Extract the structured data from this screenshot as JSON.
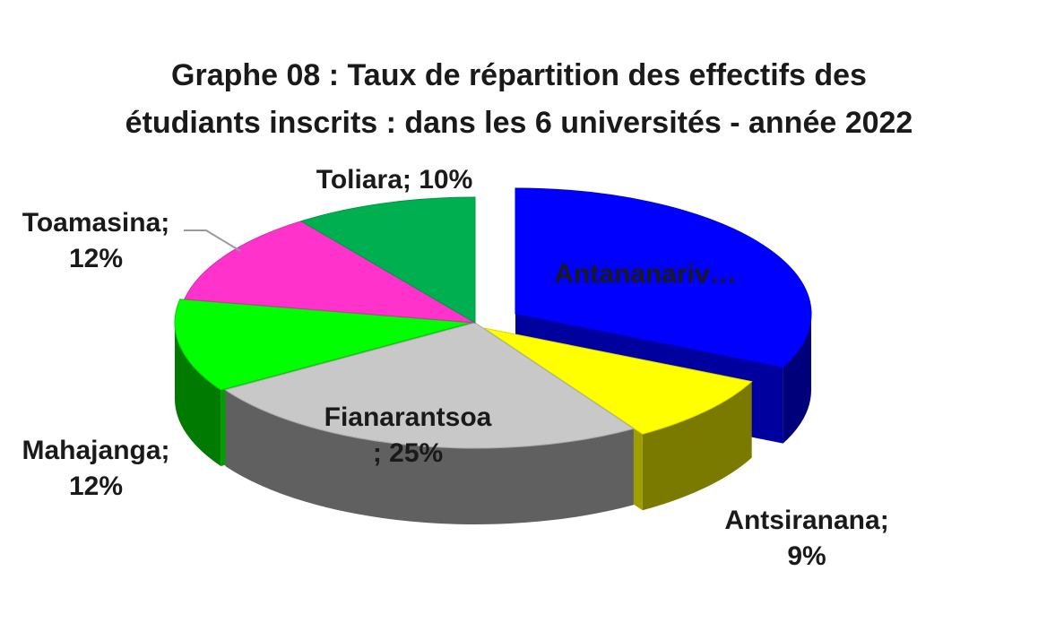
{
  "chart_data": {
    "type": "pie",
    "title_line1": "Graphe 08 : Taux de répartition des effectifs des",
    "title_line2": "étudiants inscrits : dans les 6 universités - année 2022",
    "slices": [
      {
        "name": "Antananariv…",
        "value": 32,
        "label_lines": [
          "Antananariv…"
        ],
        "color": "#0000ff"
      },
      {
        "name": "Antsiranana",
        "value": 9,
        "label_lines": [
          "Antsiranana;",
          "9%"
        ],
        "color": "#ffff00"
      },
      {
        "name": "Fianarantsoa",
        "value": 25,
        "label_lines": [
          "Fianarantsoa",
          "; 25%"
        ],
        "color": "#c8c8c8"
      },
      {
        "name": "Mahajanga",
        "value": 12,
        "label_lines": [
          "Mahajanga;",
          "12%"
        ],
        "color": "#00ff00"
      },
      {
        "name": "Toamasina",
        "value": 12,
        "label_lines": [
          "Toamasina;",
          "12%"
        ],
        "color": "#ff33cc"
      },
      {
        "name": "Toliara",
        "value": 10,
        "label_lines": [
          "Toliara; 10%"
        ],
        "color": "#00b050"
      }
    ]
  }
}
